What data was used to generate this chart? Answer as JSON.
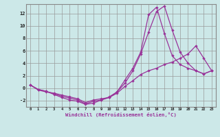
{
  "xlabel": "Windchill (Refroidissement éolien,°C)",
  "x_values": [
    0,
    1,
    2,
    3,
    4,
    5,
    6,
    7,
    8,
    9,
    10,
    11,
    12,
    13,
    14,
    15,
    16,
    17,
    18,
    19,
    20,
    21,
    22,
    23
  ],
  "line1": [
    0.5,
    -0.3,
    -0.6,
    -0.8,
    -1.1,
    -1.4,
    -1.7,
    -2.3,
    -1.9,
    -1.7,
    -1.5,
    -0.8,
    0.3,
    1.2,
    2.2,
    2.8,
    3.2,
    3.8,
    4.2,
    4.8,
    5.5,
    6.8,
    4.8,
    2.8
  ],
  "line2": [
    0.5,
    -0.2,
    -0.5,
    -0.9,
    -1.3,
    -1.6,
    -1.9,
    -2.5,
    -2.1,
    -1.9,
    -1.4,
    -0.6,
    0.8,
    2.8,
    5.5,
    9.0,
    12.3,
    13.2,
    9.3,
    5.8,
    4.0,
    2.8,
    2.3,
    2.8
  ],
  "line3": [
    0.5,
    -0.2,
    -0.5,
    -1.0,
    -1.5,
    -1.9,
    -2.1,
    -2.6,
    -2.4,
    -1.9,
    -1.5,
    -0.6,
    1.3,
    3.2,
    5.8,
    11.8,
    13.0,
    8.8,
    5.2,
    3.8,
    3.2,
    2.8,
    2.3,
    2.8
  ],
  "line_color": "#993399",
  "bg_color": "#cce8e8",
  "grid_color": "#999999",
  "ylim": [
    -3.0,
    13.5
  ],
  "yticks": [
    -2,
    0,
    2,
    4,
    6,
    8,
    10,
    12
  ],
  "marker": "D",
  "markersize": 2.2,
  "linewidth": 0.9
}
